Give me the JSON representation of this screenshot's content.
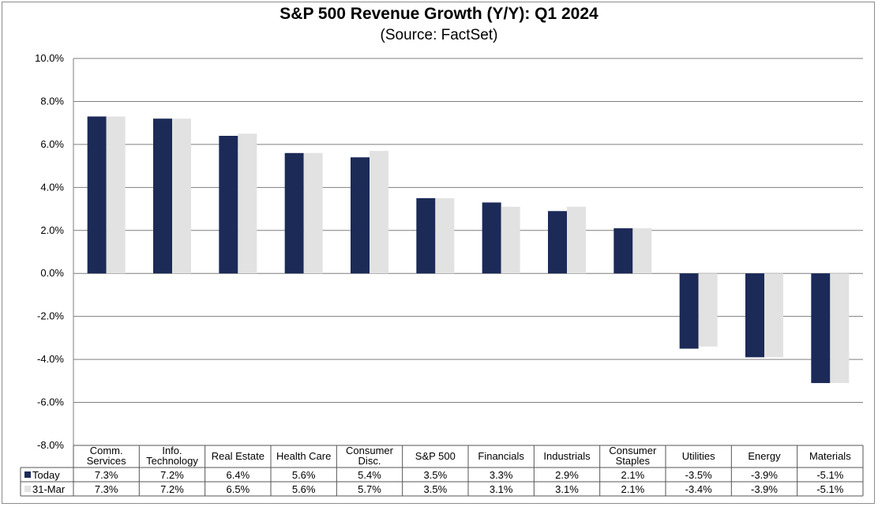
{
  "chart_data": {
    "type": "bar",
    "title": "S&P 500 Revenue Growth (Y/Y):  Q1 2024",
    "subtitle": "(Source: FactSet)",
    "categories": [
      [
        "Comm.",
        "Services"
      ],
      [
        "Info.",
        "Technology"
      ],
      [
        "Real Estate"
      ],
      [
        "Health Care"
      ],
      [
        "Consumer",
        "Disc."
      ],
      [
        "S&P 500"
      ],
      [
        "Financials"
      ],
      [
        "Industrials"
      ],
      [
        "Consumer",
        "Staples"
      ],
      [
        "Utilities"
      ],
      [
        "Energy"
      ],
      [
        "Materials"
      ]
    ],
    "series": [
      {
        "name": "Today",
        "color": "#1b2a57",
        "values": [
          7.3,
          7.2,
          6.4,
          5.6,
          5.4,
          3.5,
          3.3,
          2.9,
          2.1,
          -3.5,
          -3.9,
          -5.1
        ],
        "labels": [
          "7.3%",
          "7.2%",
          "6.4%",
          "5.6%",
          "5.4%",
          "3.5%",
          "3.3%",
          "2.9%",
          "2.1%",
          "-3.5%",
          "-3.9%",
          "-5.1%"
        ]
      },
      {
        "name": "31-Mar",
        "color": "#e2e2e2",
        "values": [
          7.3,
          7.2,
          6.5,
          5.6,
          5.7,
          3.5,
          3.1,
          3.1,
          2.1,
          -3.4,
          -3.9,
          -5.1
        ],
        "labels": [
          "7.3%",
          "7.2%",
          "6.5%",
          "5.6%",
          "5.7%",
          "3.5%",
          "3.1%",
          "3.1%",
          "2.1%",
          "-3.4%",
          "-3.9%",
          "-5.1%"
        ]
      }
    ],
    "ylim": [
      -8,
      10
    ],
    "yticks": [
      10,
      8,
      6,
      4,
      2,
      0,
      -2,
      -4,
      -6,
      -8
    ],
    "ytick_labels": [
      "10.0%",
      "8.0%",
      "6.0%",
      "4.0%",
      "2.0%",
      "0.0%",
      "-2.0%",
      "-4.0%",
      "-6.0%",
      "-8.0%"
    ],
    "grid": true,
    "legend": "data-table"
  }
}
